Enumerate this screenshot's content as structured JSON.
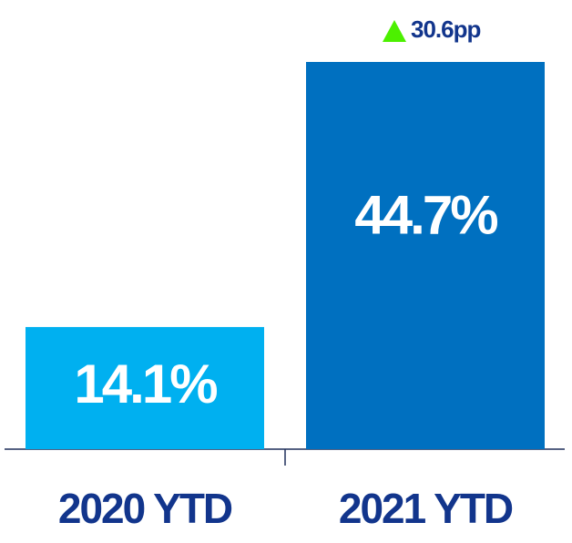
{
  "chart_data": {
    "type": "bar",
    "categories": [
      "2020 YTD",
      "2021 YTD"
    ],
    "values": [
      14.1,
      44.7
    ],
    "value_labels": [
      "14.1%",
      "44.7%"
    ],
    "colors": [
      "#00b0f0",
      "#0070c0"
    ],
    "annotation": "30.6pp",
    "annotation_color": "#4cf000"
  }
}
